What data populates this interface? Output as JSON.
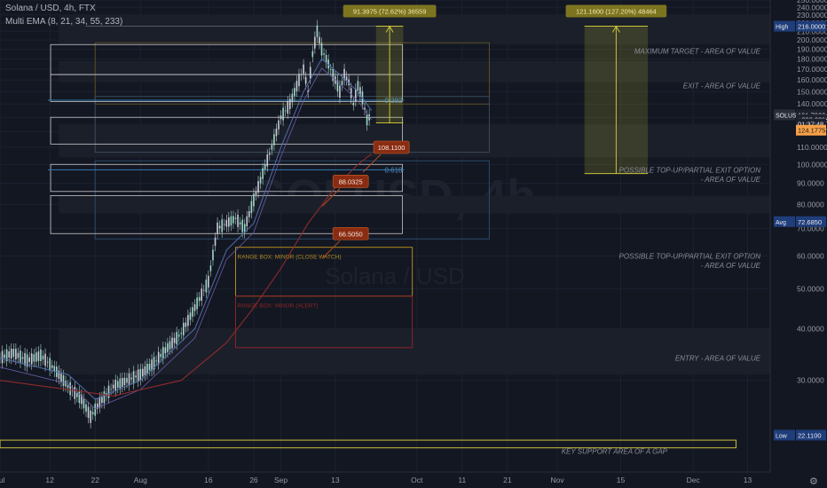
{
  "header": {
    "symbol_line": "Solana / USD, 4h, FTX",
    "indicator_line": "Multi EMA (8, 21, 34, 55, 233)"
  },
  "watermark": {
    "ticker": "SOLUSD, 4h",
    "name": "Solana / USD"
  },
  "colors": {
    "background": "#131722",
    "candle_up": "#9fd8c8",
    "candle_down": "#c9cdd6",
    "ema_fast": "#4f6ea8",
    "ema_slow": "#8e2b2b",
    "fib_line": "#2f6f9f",
    "measure_yellow": "#c9c23a",
    "callout_red": "#8a2c12",
    "high_tag": "#1f3d7a",
    "price_tag": "#f7a049",
    "box_white": "#c8c8c8"
  },
  "chart_data": {
    "type": "candlestick",
    "y_scale": "log",
    "ylim": [
      18,
      250
    ],
    "x_start": "2021-07-01",
    "x_end": "2021-12-18",
    "x_ticks": [
      {
        "date": "2021-07-01",
        "label": "Jul"
      },
      {
        "date": "2021-07-12",
        "label": "12"
      },
      {
        "date": "2021-07-22",
        "label": "22"
      },
      {
        "date": "2021-08-01",
        "label": "Aug"
      },
      {
        "date": "2021-08-16",
        "label": "16"
      },
      {
        "date": "2021-08-26",
        "label": "26"
      },
      {
        "date": "2021-09-01",
        "label": "Sep"
      },
      {
        "date": "2021-09-13",
        "label": "13"
      },
      {
        "date": "2021-10-01",
        "label": "Oct"
      },
      {
        "date": "2021-10-11",
        "label": "11"
      },
      {
        "date": "2021-10-21",
        "label": "21"
      },
      {
        "date": "2021-11-01",
        "label": "Nov"
      },
      {
        "date": "2021-11-15",
        "label": "15"
      },
      {
        "date": "2021-12-01",
        "label": "Dec"
      },
      {
        "date": "2021-12-13",
        "label": "13"
      }
    ],
    "y_ticks": [
      30,
      40,
      50,
      60,
      70,
      80,
      90,
      100,
      110,
      120,
      130,
      140,
      150,
      160,
      170,
      180,
      190,
      200,
      210,
      220,
      230,
      240,
      250
    ],
    "price_path": [
      [
        "2021-07-01",
        34
      ],
      [
        "2021-07-04",
        35
      ],
      [
        "2021-07-07",
        33.5
      ],
      [
        "2021-07-10",
        34.5
      ],
      [
        "2021-07-13",
        32
      ],
      [
        "2021-07-16",
        29
      ],
      [
        "2021-07-19",
        27
      ],
      [
        "2021-07-21",
        24.5
      ],
      [
        "2021-07-23",
        26.5
      ],
      [
        "2021-07-26",
        29
      ],
      [
        "2021-07-29",
        30
      ],
      [
        "2021-08-01",
        31
      ],
      [
        "2021-08-04",
        33
      ],
      [
        "2021-08-07",
        36
      ],
      [
        "2021-08-10",
        39
      ],
      [
        "2021-08-13",
        45
      ],
      [
        "2021-08-16",
        52
      ],
      [
        "2021-08-18",
        70
      ],
      [
        "2021-08-20",
        72
      ],
      [
        "2021-08-22",
        74
      ],
      [
        "2021-08-24",
        70
      ],
      [
        "2021-08-26",
        82
      ],
      [
        "2021-08-28",
        95
      ],
      [
        "2021-08-30",
        110
      ],
      [
        "2021-09-01",
        130
      ],
      [
        "2021-09-03",
        140
      ],
      [
        "2021-09-05",
        160
      ],
      [
        "2021-09-06",
        170
      ],
      [
        "2021-09-07",
        150
      ],
      [
        "2021-09-08",
        185
      ],
      [
        "2021-09-09",
        210
      ],
      [
        "2021-09-10",
        190
      ],
      [
        "2021-09-11",
        180
      ],
      [
        "2021-09-12",
        170
      ],
      [
        "2021-09-13",
        160
      ],
      [
        "2021-09-14",
        150
      ],
      [
        "2021-09-15",
        165
      ],
      [
        "2021-09-16",
        158
      ],
      [
        "2021-09-17",
        140
      ],
      [
        "2021-09-18",
        155
      ],
      [
        "2021-09-19",
        145
      ],
      [
        "2021-09-20",
        128
      ],
      [
        "2021-09-21",
        132
      ]
    ],
    "ema_fast": [
      [
        "2021-07-01",
        34
      ],
      [
        "2021-07-16",
        31
      ],
      [
        "2021-07-22",
        27
      ],
      [
        "2021-08-01",
        30
      ],
      [
        "2021-08-13",
        40
      ],
      [
        "2021-08-20",
        62
      ],
      [
        "2021-08-26",
        72
      ],
      [
        "2021-09-01",
        110
      ],
      [
        "2021-09-06",
        150
      ],
      [
        "2021-09-10",
        180
      ],
      [
        "2021-09-14",
        165
      ],
      [
        "2021-09-18",
        150
      ],
      [
        "2021-09-21",
        135
      ]
    ],
    "ema_slow": [
      [
        "2021-07-01",
        30
      ],
      [
        "2021-07-16",
        28.5
      ],
      [
        "2021-07-26",
        27.5
      ],
      [
        "2021-08-10",
        30
      ],
      [
        "2021-08-20",
        37
      ],
      [
        "2021-08-26",
        45
      ],
      [
        "2021-09-01",
        56
      ],
      [
        "2021-09-07",
        72
      ],
      [
        "2021-09-13",
        88
      ],
      [
        "2021-09-18",
        100
      ],
      [
        "2021-09-21",
        106
      ]
    ],
    "fib_lines": [
      {
        "label": "0.382",
        "price": 143,
        "from": "2021-07-10",
        "to": "2021-09-29"
      },
      {
        "label": "0.618",
        "price": 97,
        "from": "2021-07-10",
        "to": "2021-09-29"
      }
    ],
    "high_line": {
      "price": 216,
      "from": "2021-07-14",
      "to": "2021-09-28"
    },
    "measurements": [
      {
        "label": "91.3975 (72.62%) 36559",
        "from": "2021-09-22",
        "to": "2021-09-28",
        "low": 126,
        "high": 216
      },
      {
        "label": "121.1600 (127.20%) 48464",
        "from": "2021-11-07",
        "to": "2021-11-21",
        "low": 95,
        "high": 216
      }
    ],
    "callouts": [
      {
        "label": "108.1100",
        "date": "2021-09-25",
        "price": 110
      },
      {
        "label": "88.0325",
        "date": "2021-09-16",
        "price": 91
      },
      {
        "label": "66.5050",
        "date": "2021-09-16",
        "price": 68
      }
    ],
    "range_boxes": [
      {
        "label": "RANGE BOX: MINOR  (CLOSE WATCH)",
        "from": "2021-08-22",
        "to": "2021-09-30",
        "low": 48,
        "high": 63,
        "color": "#b08a1e"
      },
      {
        "label": "RANGE BOX: MINOR (ALERT)",
        "from": "2021-08-22",
        "to": "2021-09-30",
        "low": 36,
        "high": 48,
        "color": "#8a2424"
      }
    ],
    "value_boxes": [
      {
        "from": "2021-07-11",
        "to": "2021-09-29",
        "low": 165,
        "high": 195
      },
      {
        "from": "2021-07-11",
        "to": "2021-09-29",
        "low": 142,
        "high": 165
      },
      {
        "from": "2021-07-11",
        "to": "2021-09-29",
        "low": 112,
        "high": 130
      },
      {
        "from": "2021-07-11",
        "to": "2021-09-29",
        "low": 86,
        "high": 100
      },
      {
        "from": "2021-07-11",
        "to": "2021-09-29",
        "low": 68,
        "high": 84
      }
    ],
    "annotations": [
      {
        "label": "MAXIMUM TARGET - AREA OF VALUE",
        "price": 188
      },
      {
        "label": "EXIT - AREA OF VALUE",
        "price": 155
      },
      {
        "label": "POSSIBLE TOP-UP/PARTIAL EXIT OPTION",
        "price": 97
      },
      {
        "label": "- AREA OF VALUE",
        "price": 92
      },
      {
        "label": "POSSIBLE TOP-UP/PARTIAL EXIT OPTION",
        "price": 60
      },
      {
        "label": "- AREA OF VALUE",
        "price": 57
      },
      {
        "label": "ENTRY - AREA OF VALUE",
        "price": 34
      },
      {
        "label": "KEY SUPPORT AREA OF A GAP",
        "price": 20.2
      }
    ],
    "price_tags": [
      {
        "label": "High",
        "value": "216.0000",
        "price": 216,
        "color": "#1f3d7a"
      },
      {
        "label": "SOLUSD",
        "value": "131.7900",
        "price": 131.79,
        "color": "#f0f3fa"
      },
      {
        "label": "",
        "value": "+293.02%",
        "price": 128.5,
        "color": "#f0f3fa"
      },
      {
        "label": "",
        "value": "01:37:48",
        "price": 125.3,
        "color": "#f0f3fa"
      },
      {
        "label": "",
        "value": "124.1775",
        "price": 121,
        "color": "#f7a049"
      },
      {
        "label": "Avg",
        "value": "72.6850",
        "price": 72.685,
        "color": "#1f3d7a"
      },
      {
        "label": "Low",
        "value": "22.1100",
        "price": 22.11,
        "color": "#1f3d7a"
      }
    ]
  }
}
